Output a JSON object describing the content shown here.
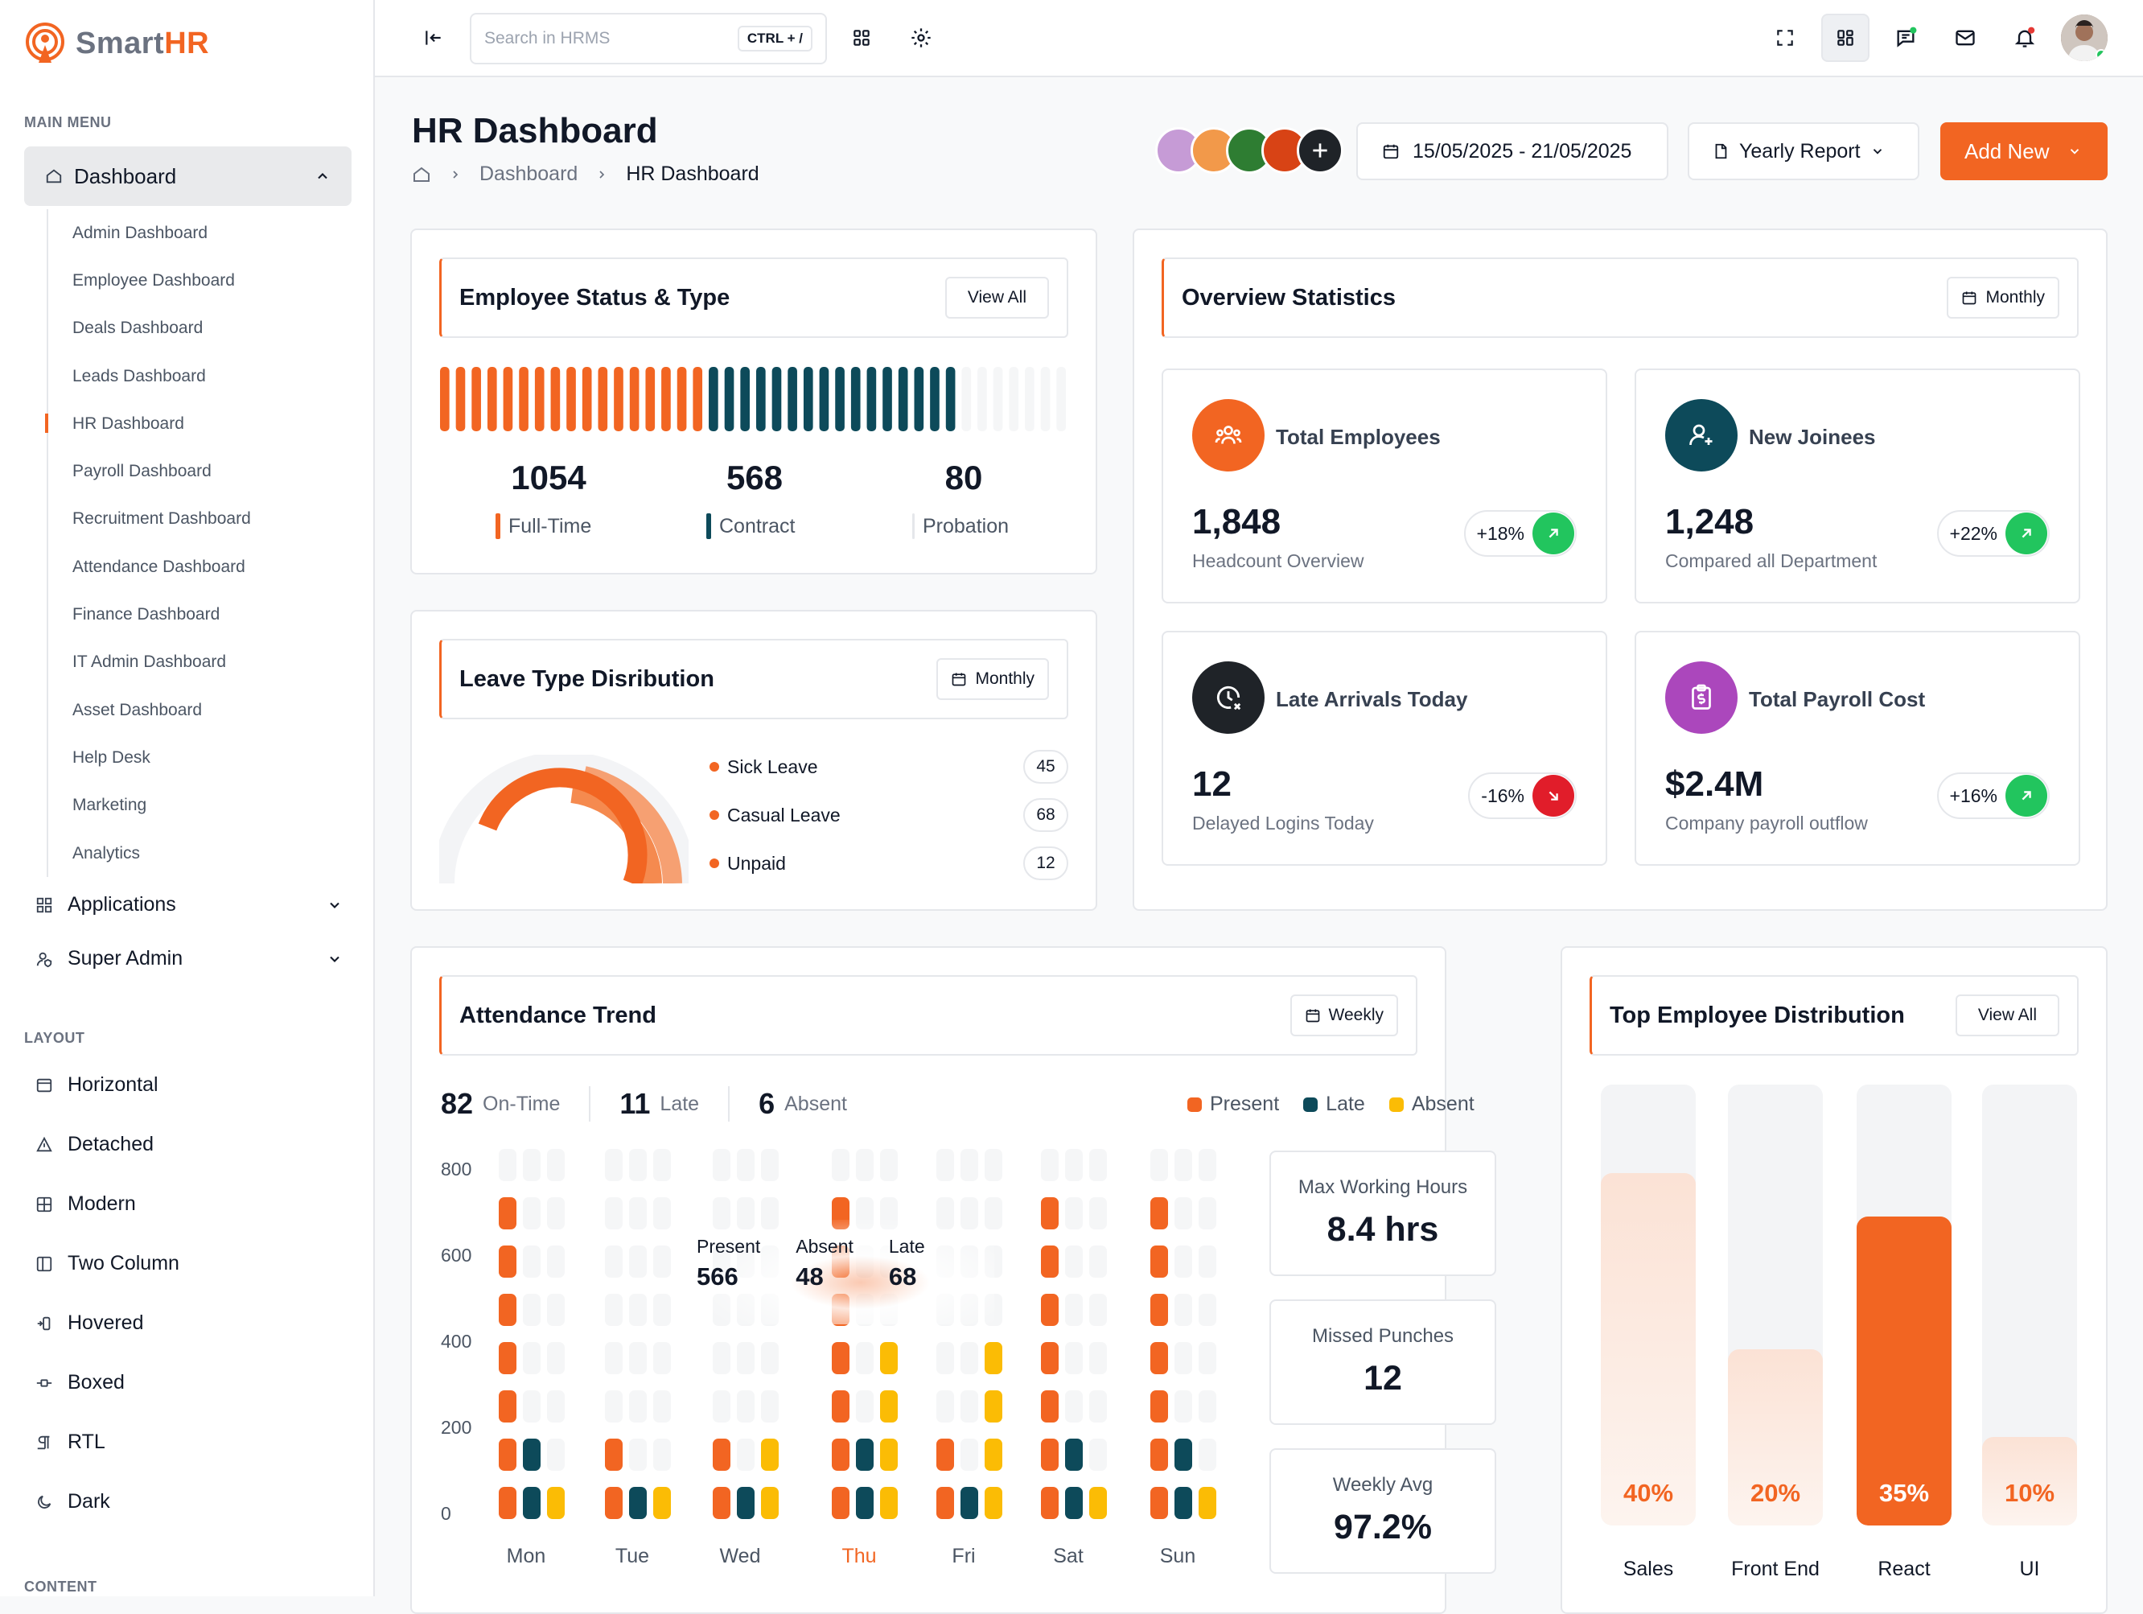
{
  "brand": {
    "name_a": "Smart",
    "name_b": "HR"
  },
  "sidebar": {
    "main_menu_label": "MAIN MENU",
    "dashboard_label": "Dashboard",
    "sub_items": [
      "Admin Dashboard",
      "Employee Dashboard",
      "Deals Dashboard",
      "Leads Dashboard",
      "HR Dashboard",
      "Payroll Dashboard",
      "Recruitment Dashboard",
      "Attendance Dashboard",
      "Finance Dashboard",
      "IT Admin Dashboard",
      "Asset Dashboard",
      "Help Desk",
      "Marketing",
      "Analytics"
    ],
    "active_sub": "HR Dashboard",
    "applications_label": "Applications",
    "super_admin_label": "Super Admin",
    "layout_label": "LAYOUT",
    "layout_items": [
      "Horizontal",
      "Detached",
      "Modern",
      "Two Column",
      "Hovered",
      "Boxed",
      "RTL",
      "Dark"
    ],
    "content_label": "CONTENT"
  },
  "topbar": {
    "search_placeholder": "Search in HRMS",
    "search_shortcut": "CTRL + /"
  },
  "header": {
    "title": "HR Dashboard",
    "breadcrumb": [
      "Dashboard",
      "HR Dashboard"
    ],
    "date_range": "15/05/2025 - 21/05/2025",
    "report_label": "Yearly Report",
    "add_label": "Add New"
  },
  "employee_status": {
    "title": "Employee Status & Type",
    "view_all": "View All",
    "stats": [
      {
        "value": "1054",
        "label": "Full-Time",
        "color": "#f26522"
      },
      {
        "value": "568",
        "label": "Contract",
        "color": "#0d4a5a"
      },
      {
        "value": "80",
        "label": "Probation",
        "color": "#e5e7eb"
      }
    ]
  },
  "leave_dist": {
    "title": "Leave Type Disribution",
    "filter": "Monthly",
    "items": [
      {
        "label": "Sick Leave",
        "count": "45"
      },
      {
        "label": "Casual Leave",
        "count": "68"
      },
      {
        "label": "Unpaid",
        "count": "12"
      }
    ]
  },
  "overview": {
    "title": "Overview Statistics",
    "filter": "Monthly",
    "cards": [
      {
        "title": "Total Employees",
        "value": "1,848",
        "sub": "Headcount Overview",
        "change": "+18%",
        "trend": "up",
        "icon": "users-icon",
        "color": "#f26522"
      },
      {
        "title": "New Joinees",
        "value": "1,248",
        "sub": "Compared all Department",
        "change": "+22%",
        "trend": "up",
        "icon": "user-plus-icon",
        "color": "#0d4a5a"
      },
      {
        "title": "Late Arrivals Today",
        "value": "12",
        "sub": "Delayed Logins Today",
        "change": "-16%",
        "trend": "down",
        "icon": "clock-x-icon",
        "color": "#1f2328"
      },
      {
        "title": "Total Payroll Cost",
        "value": "$2.4M",
        "sub": "Company payroll outflow",
        "change": "+16%",
        "trend": "up",
        "icon": "clipboard-dollar-icon",
        "color": "#ab47bc"
      }
    ]
  },
  "attendance": {
    "title": "Attendance Trend",
    "filter": "Weekly",
    "summary": [
      {
        "value": "82",
        "label": "On-Time"
      },
      {
        "value": "11",
        "label": "Late"
      },
      {
        "value": "6",
        "label": "Absent"
      }
    ],
    "legend": [
      {
        "label": "Present",
        "color": "#f26522"
      },
      {
        "label": "Late",
        "color": "#0d4a5a"
      },
      {
        "label": "Absent",
        "color": "#fbbc05"
      }
    ],
    "tooltip": [
      {
        "label": "Present",
        "value": "566"
      },
      {
        "label": "Absent",
        "value": "48"
      },
      {
        "label": "Late",
        "value": "68"
      }
    ],
    "side_stats": [
      {
        "label": "Max Working Hours",
        "value": "8.4 hrs"
      },
      {
        "label": "Missed Punches",
        "value": "12"
      },
      {
        "label": "Weekly Avg",
        "value": "97.2%"
      }
    ]
  },
  "chart_data": {
    "type": "bar",
    "title": "Attendance Trend",
    "categories": [
      "Mon",
      "Tue",
      "Wed",
      "Thu",
      "Fri",
      "Sat",
      "Sun"
    ],
    "highlight_category": "Thu",
    "y_ticks": [
      "800",
      "600",
      "400",
      "200",
      "0"
    ],
    "ylim": [
      0,
      800
    ],
    "series": [
      {
        "name": "Present",
        "color": "#f26522",
        "values": [
          700,
          200,
          200,
          700,
          200,
          700,
          700
        ]
      },
      {
        "name": "Late",
        "color": "#0d4a5a",
        "values": [
          200,
          100,
          100,
          200,
          100,
          200,
          200
        ]
      },
      {
        "name": "Absent",
        "color": "#fbbc05",
        "values": [
          100,
          100,
          200,
          400,
          400,
          100,
          100
        ]
      }
    ]
  },
  "top_distribution": {
    "title": "Top Employee Distribution",
    "view_all": "View All",
    "items": [
      {
        "label": "Sales",
        "pct": 40,
        "pct_label": "40%"
      },
      {
        "label": "Front End",
        "pct": 20,
        "pct_label": "20%"
      },
      {
        "label": "React",
        "pct": 35,
        "pct_label": "35%",
        "highlight": true
      },
      {
        "label": "UI",
        "pct": 10,
        "pct_label": "10%"
      }
    ]
  }
}
